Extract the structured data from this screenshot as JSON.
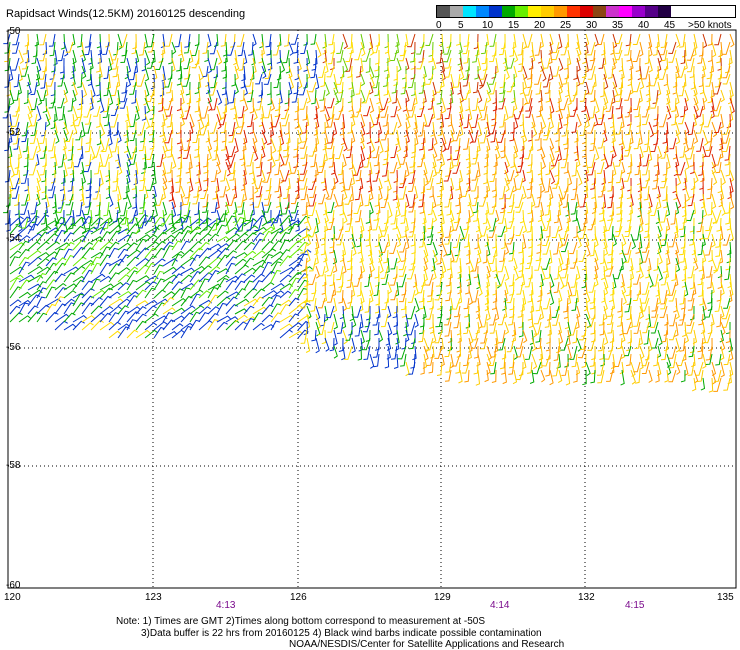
{
  "title": "Rapidsact Winds(12.5KM) 20160125 descending",
  "legend": {
    "labels": [
      "0",
      "5",
      "10",
      "15",
      "20",
      "25",
      "30",
      "35",
      "40",
      "45",
      ">50 knots"
    ],
    "colors": [
      "#555555",
      "#aaaaaa",
      "#00e5ff",
      "#0088ff",
      "#0033cc",
      "#00aa00",
      "#66ee00",
      "#ffee00",
      "#ffcc00",
      "#ff9900",
      "#ff3300",
      "#dd0000",
      "#8b4513",
      "#cc33cc",
      "#ff00ff",
      "#9900cc",
      "#550088",
      "#220044"
    ]
  },
  "map": {
    "lat_labels": [
      "-50",
      "-52",
      "-54",
      "-56",
      "-58",
      "-60"
    ],
    "lon_labels": [
      "120",
      "123",
      "126",
      "129",
      "132",
      "135"
    ],
    "time_labels": [
      "4:13",
      "4:14",
      "4:15"
    ]
  },
  "notes": {
    "line1": "Note: 1) Times are GMT 2)Times along bottom correspond to measurement at -50S",
    "line2": "3)Data buffer is 22 hrs from 20160125 4) Black wind barbs indicate possible contamination",
    "line3": "NOAA/NESDIS/Center for Satellite Applications and Research"
  }
}
